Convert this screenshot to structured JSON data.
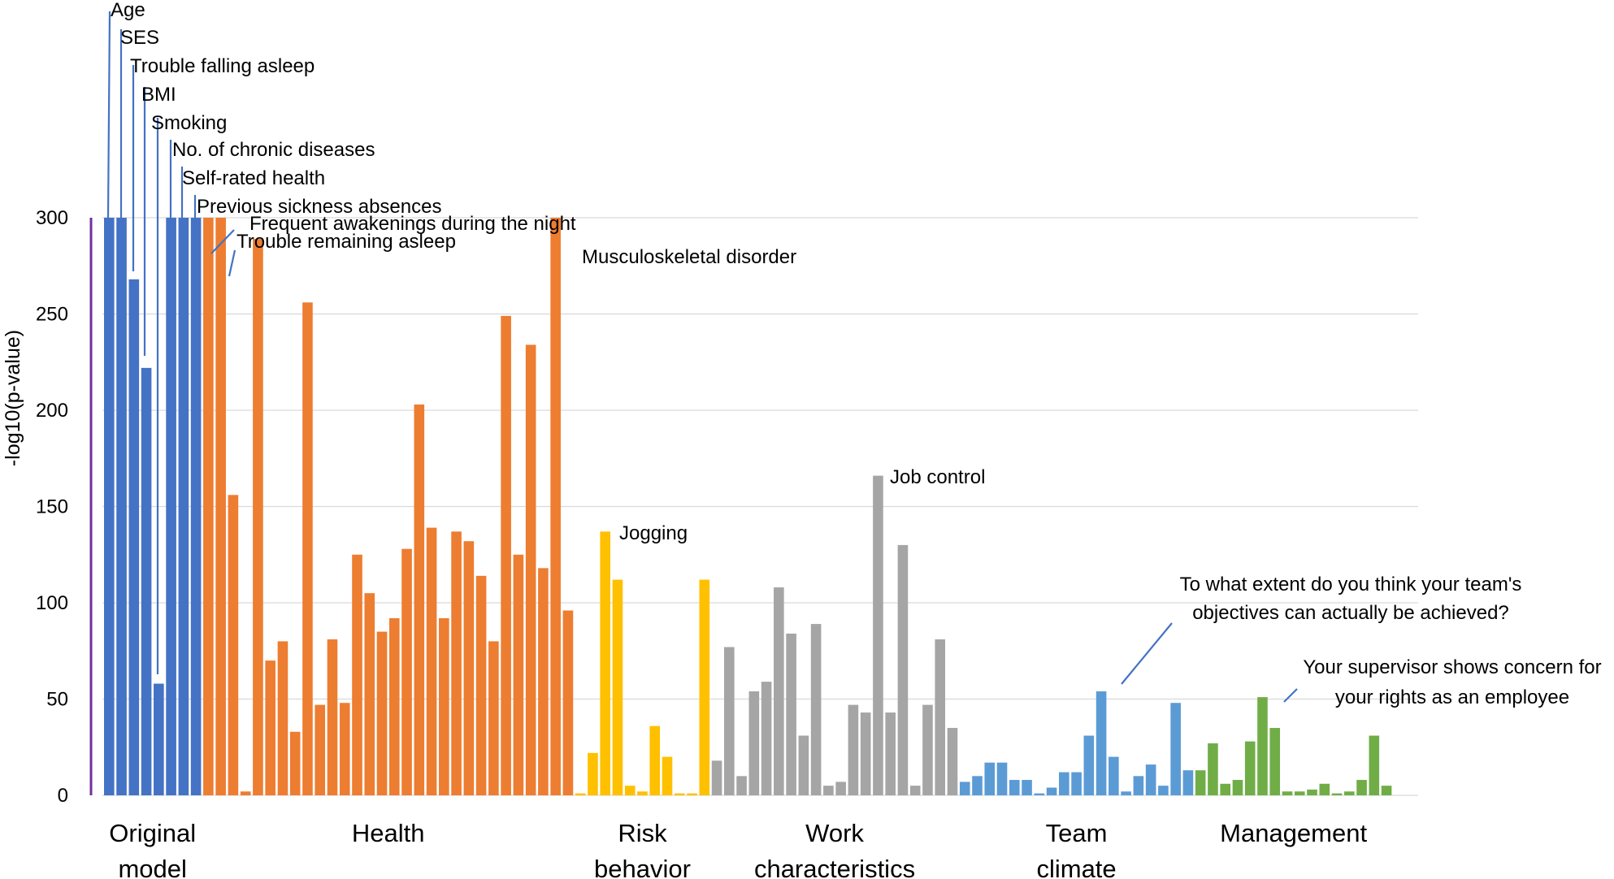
{
  "chart_data": {
    "type": "bar",
    "ylabel": "-log10(p-value)",
    "xlabel": "",
    "ylim": [
      0,
      300
    ],
    "yticks": [
      0,
      50,
      100,
      150,
      200,
      250,
      300
    ],
    "grid": true,
    "colors": {
      "original": "#4472C4",
      "health": "#ED7D31",
      "risk": "#FFC000",
      "work": "#A5A5A5",
      "team": "#5B9BD5",
      "management": "#70AD47",
      "axis": "#7030A0",
      "grid": "#D9D9D9",
      "leader": "#4472C4"
    },
    "groups": [
      {
        "key": "original",
        "label_lines": [
          "Original",
          "model"
        ],
        "values": [
          300,
          300,
          268,
          222,
          58,
          300,
          300,
          300
        ]
      },
      {
        "key": "health",
        "label_lines": [
          "Health"
        ],
        "values": [
          300,
          300,
          156,
          2,
          289,
          70,
          80,
          33,
          256,
          47,
          81,
          48,
          125,
          105,
          85,
          92,
          128,
          203,
          139,
          92,
          137,
          132,
          114,
          80,
          249,
          125,
          234,
          118,
          300,
          96
        ]
      },
      {
        "key": "risk",
        "label_lines": [
          "Risk",
          "behavior"
        ],
        "values": [
          1,
          22,
          137,
          112,
          5,
          2,
          36,
          20,
          1,
          1,
          112
        ]
      },
      {
        "key": "work",
        "label_lines": [
          "Work",
          "characteristics"
        ],
        "values": [
          18,
          77,
          10,
          54,
          59,
          108,
          84,
          31,
          89,
          5,
          7,
          47,
          43,
          166,
          43,
          130,
          5,
          47,
          81,
          35
        ]
      },
      {
        "key": "team",
        "label_lines": [
          "Team",
          "climate"
        ],
        "values": [
          7,
          10,
          17,
          17,
          8,
          8,
          1,
          4,
          12,
          12,
          31,
          54,
          20,
          2,
          10,
          16,
          5,
          48,
          13
        ]
      },
      {
        "key": "management",
        "label_lines": [
          "Management"
        ],
        "values": [
          13,
          27,
          6,
          8,
          28,
          51,
          35,
          2,
          2,
          3,
          6,
          1,
          2,
          8,
          31,
          5
        ]
      }
    ],
    "annotations": [
      {
        "text": "Age",
        "bar": 0
      },
      {
        "text": "SES",
        "bar": 1
      },
      {
        "text": "Trouble falling asleep",
        "bar": 2
      },
      {
        "text": "BMI",
        "bar": 3
      },
      {
        "text": "Smoking",
        "bar": 4
      },
      {
        "text": "No. of chronic diseases",
        "bar": 5
      },
      {
        "text": "Self-rated health",
        "bar": 6
      },
      {
        "text": "Previous sickness absences",
        "bar": 7
      },
      {
        "text": "Frequent awakenings  during the night",
        "bar": 8
      },
      {
        "text": "Trouble remaining asleep",
        "bar": 9
      },
      {
        "text": "Musculoskeletal disorder",
        "bar": 36
      },
      {
        "text": "Jogging",
        "bar": 40
      },
      {
        "text": "Job control",
        "bar": 62
      },
      {
        "text": "To what extent do you think your team's",
        "bar": 80
      },
      {
        "text": "objectives can actually be achieved?",
        "bar": 80
      },
      {
        "text": "Your supervisor shows concern for",
        "bar": 93
      },
      {
        "text": "your rights as an employee",
        "bar": 93
      }
    ]
  }
}
